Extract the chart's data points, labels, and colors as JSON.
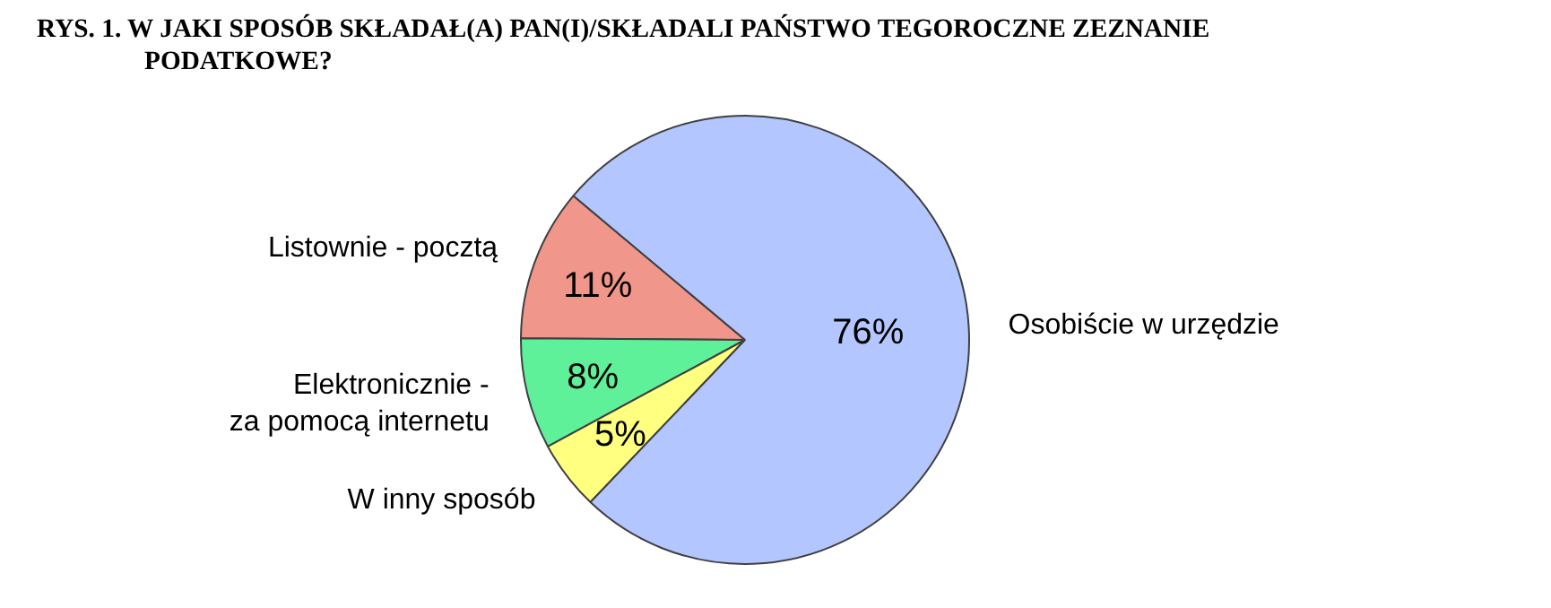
{
  "chart_data": {
    "type": "pie",
    "title": "RYS. 1. W JAKI SPOSÓB SKŁADAŁ(A) PAN(I)/SKŁADALI PAŃSTWO TEGOROCZNE ZEZNANIE PODATKOWE?",
    "categories": [
      "Listownie - pocztą",
      "Elektronicznie -\nza pomocą internetu",
      "W inny sposób",
      "Osobiście w urzędzie"
    ],
    "values": [
      11,
      8,
      5,
      76
    ],
    "colors": [
      "#f0968a",
      "#5ff09a",
      "#ffff80",
      "#b3c6ff"
    ],
    "value_labels": [
      "11%",
      "8%",
      "5%",
      "76%"
    ]
  }
}
